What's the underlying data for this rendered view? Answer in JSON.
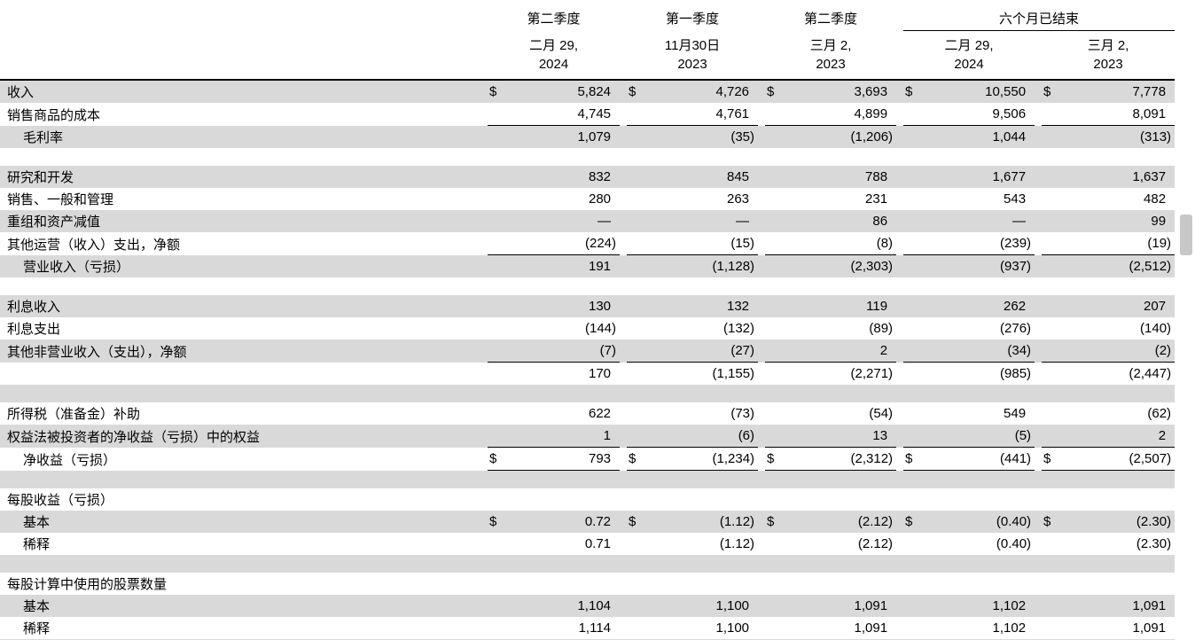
{
  "colors": {
    "row_shade": "#d9d9d9",
    "rule": "#000000",
    "scrollbar_thumb": "#c8c8c8"
  },
  "table": {
    "currency_symbol": "$",
    "header": {
      "periods": [
        "第二季度",
        "第一季度",
        "第二季度",
        "六个月已结束"
      ],
      "dates": [
        {
          "l1": "二月 29,",
          "l2": "2024"
        },
        {
          "l1": "11月30日",
          "l2": "2023"
        },
        {
          "l1": "三月 2,",
          "l2": "2023"
        },
        {
          "l1": "二月 29,",
          "l2": "2024"
        },
        {
          "l1": "三月 2,",
          "l2": "2023"
        }
      ]
    },
    "rows": [
      {
        "kind": "data",
        "label": "收入",
        "indent": false,
        "gray": true,
        "dollar": true,
        "top_border": true,
        "values": [
          "5,824",
          "4,726",
          "3,693",
          "10,550",
          "7,778"
        ]
      },
      {
        "kind": "data",
        "label": "销售商品的成本",
        "indent": false,
        "gray": false,
        "underline": true,
        "values": [
          "4,745",
          "4,761",
          "4,899",
          "9,506",
          "8,091"
        ]
      },
      {
        "kind": "data",
        "label": "毛利率",
        "indent": true,
        "gray": true,
        "values": [
          "1,079",
          "(35)",
          "(1,206)",
          "1,044",
          "(313)"
        ]
      },
      {
        "kind": "spacer",
        "gray": false
      },
      {
        "kind": "data",
        "label": "研究和开发",
        "indent": false,
        "gray": true,
        "values": [
          "832",
          "845",
          "788",
          "1,677",
          "1,637"
        ]
      },
      {
        "kind": "data",
        "label": "销售、一般和管理",
        "indent": false,
        "gray": false,
        "values": [
          "280",
          "263",
          "231",
          "543",
          "482"
        ]
      },
      {
        "kind": "data",
        "label": "重组和资产减值",
        "indent": false,
        "gray": true,
        "values": [
          "—",
          "—",
          "86",
          "—",
          "99"
        ]
      },
      {
        "kind": "data",
        "label": "其他运营（收入）支出，净额",
        "indent": false,
        "gray": false,
        "underline": true,
        "values": [
          "(224)",
          "(15)",
          "(8)",
          "(239)",
          "(19)"
        ]
      },
      {
        "kind": "data",
        "label": "营业收入（亏损）",
        "indent": true,
        "gray": true,
        "values": [
          "191",
          "(1,128)",
          "(2,303)",
          "(937)",
          "(2,512)"
        ]
      },
      {
        "kind": "spacer",
        "gray": false
      },
      {
        "kind": "data",
        "label": "利息收入",
        "indent": false,
        "gray": true,
        "values": [
          "130",
          "132",
          "119",
          "262",
          "207"
        ]
      },
      {
        "kind": "data",
        "label": "利息支出",
        "indent": false,
        "gray": false,
        "values": [
          "(144)",
          "(132)",
          "(89)",
          "(276)",
          "(140)"
        ]
      },
      {
        "kind": "data",
        "label": "其他非营业收入（支出），净额",
        "indent": false,
        "gray": true,
        "underline": true,
        "values": [
          "(7)",
          "(27)",
          "2",
          "(34)",
          "(2)"
        ]
      },
      {
        "kind": "data",
        "label": "",
        "indent": false,
        "gray": false,
        "values": [
          "170",
          "(1,155)",
          "(2,271)",
          "(985)",
          "(2,447)"
        ]
      },
      {
        "kind": "spacer",
        "gray": true
      },
      {
        "kind": "data",
        "label": "所得税（准备金）补助",
        "indent": false,
        "gray": false,
        "values": [
          "622",
          "(73)",
          "(54)",
          "549",
          "(62)"
        ]
      },
      {
        "kind": "data",
        "label": "权益法被投资者的净收益（亏损）中的权益",
        "indent": false,
        "gray": true,
        "underline": true,
        "values": [
          "1",
          "(6)",
          "13",
          "(5)",
          "2"
        ]
      },
      {
        "kind": "data",
        "label": "净收益（亏损）",
        "indent": true,
        "gray": false,
        "dollar": true,
        "underline": true,
        "values": [
          "793",
          "(1,234)",
          "(2,312)",
          "(441)",
          "(2,507)"
        ]
      },
      {
        "kind": "spacer",
        "gray": true
      },
      {
        "kind": "data",
        "label": "每股收益（亏损）",
        "indent": false,
        "gray": false,
        "values": [
          "",
          "",
          "",
          "",
          ""
        ]
      },
      {
        "kind": "data",
        "label": "基本",
        "indent": true,
        "gray": true,
        "dollar": true,
        "values": [
          "0.72",
          "(1.12)",
          "(2.12)",
          "(0.40)",
          "(2.30)"
        ]
      },
      {
        "kind": "data",
        "label": "稀释",
        "indent": true,
        "gray": false,
        "values": [
          "0.71",
          "(1.12)",
          "(2.12)",
          "(0.40)",
          "(2.30)"
        ]
      },
      {
        "kind": "spacer",
        "gray": true
      },
      {
        "kind": "data",
        "label": "每股计算中使用的股票数量",
        "indent": false,
        "gray": false,
        "values": [
          "",
          "",
          "",
          "",
          ""
        ]
      },
      {
        "kind": "data",
        "label": "基本",
        "indent": true,
        "gray": true,
        "values": [
          "1,104",
          "1,100",
          "1,091",
          "1,102",
          "1,091"
        ]
      },
      {
        "kind": "data",
        "label": "稀释",
        "indent": true,
        "gray": false,
        "values": [
          "1,114",
          "1,100",
          "1,091",
          "1,102",
          "1,091"
        ]
      },
      {
        "kind": "spacer",
        "gray": true,
        "partial": true
      }
    ]
  },
  "scrollbar": {
    "present": true
  }
}
